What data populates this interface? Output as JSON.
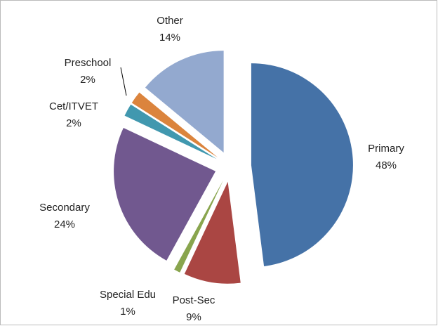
{
  "chart_data": {
    "type": "pie",
    "categories": [
      "Primary",
      "Post-Sec",
      "Special Edu",
      "Secondary",
      "Cet/ITVET",
      "Preschool",
      "Other"
    ],
    "values": [
      48,
      9,
      1,
      24,
      2,
      2,
      14
    ],
    "value_labels": [
      "48%",
      "9%",
      "1%",
      "24%",
      "2%",
      "2%",
      "14%"
    ],
    "colors": [
      "#4572a7",
      "#aa4643",
      "#89a54e",
      "#71588f",
      "#4198af",
      "#db843d",
      "#93a9cf"
    ]
  }
}
